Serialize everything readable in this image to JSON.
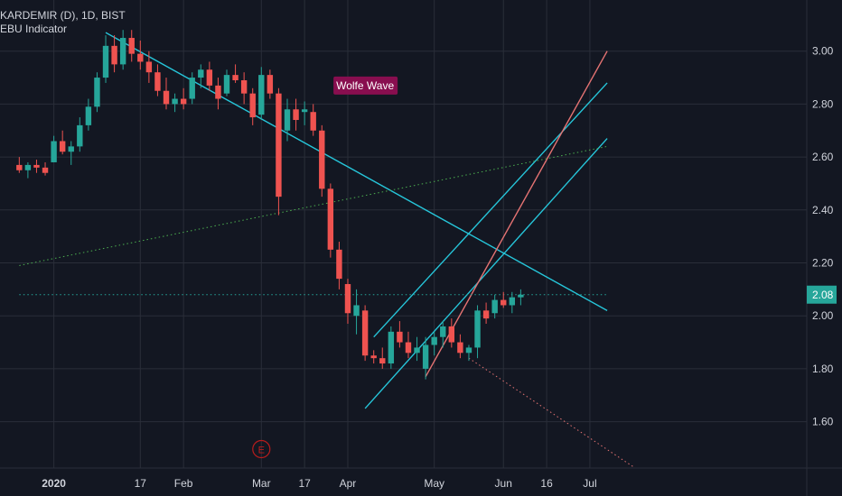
{
  "header": {
    "symbol_line": "KARDEMIR (D), 1D, BIST",
    "indicator_name": "EBU Indicator"
  },
  "colors": {
    "background": "#131722",
    "grid": "#2a2e39",
    "up": "#26a69a",
    "down": "#ef5350",
    "text": "#d1d4dc",
    "trendline": "#26c6da",
    "target_line": "#e57373",
    "dotted_line": "#4caf50",
    "price_badge": "#26a69a",
    "wolfe_label_bg": "#880e4f",
    "marker": "#b71c1c"
  },
  "chart_data": {
    "type": "candlestick",
    "title": "KARDEMIR (D), 1D, BIST",
    "indicator": "EBU Indicator",
    "y_ticks": [
      "3.00",
      "2.80",
      "2.60",
      "2.40",
      "2.20",
      "2.00",
      "1.80",
      "1.60"
    ],
    "y_tick_values": [
      3.0,
      2.8,
      2.6,
      2.4,
      2.2,
      2.0,
      1.8,
      1.6
    ],
    "ylim": [
      1.43,
      3.07
    ],
    "x_ticks": [
      {
        "label": "2020",
        "bold": true,
        "bar": 0
      },
      {
        "label": "17",
        "bold": false,
        "bar": 10
      },
      {
        "label": "Feb",
        "bold": false,
        "bar": 15
      },
      {
        "label": "Mar",
        "bold": false,
        "bar": 24
      },
      {
        "label": "17",
        "bold": false,
        "bar": 29
      },
      {
        "label": "Apr",
        "bold": false,
        "bar": 34
      },
      {
        "label": "May",
        "bold": false,
        "bar": 44
      },
      {
        "label": "Jun",
        "bold": false,
        "bar": 52
      },
      {
        "label": "16",
        "bold": false,
        "bar": 57
      },
      {
        "label": "Jul",
        "bold": false,
        "bar": 62
      }
    ],
    "current_price": {
      "label": "2.08",
      "value": 2.08
    },
    "annotation_label": "Wolfe Wave",
    "annotation_anchor": {
      "bar": 36,
      "value": 2.87
    },
    "marker": {
      "label": "E",
      "bar": 24
    },
    "candles": [
      [
        -4,
        2.57,
        2.6,
        2.54,
        2.55
      ],
      [
        -3,
        2.55,
        2.58,
        2.52,
        2.57
      ],
      [
        -2,
        2.57,
        2.59,
        2.54,
        2.56
      ],
      [
        -1,
        2.56,
        2.58,
        2.53,
        2.54
      ],
      [
        0,
        2.58,
        2.68,
        2.58,
        2.66
      ],
      [
        1,
        2.66,
        2.7,
        2.61,
        2.62
      ],
      [
        2,
        2.62,
        2.66,
        2.57,
        2.64
      ],
      [
        3,
        2.64,
        2.75,
        2.62,
        2.72
      ],
      [
        4,
        2.72,
        2.82,
        2.7,
        2.79
      ],
      [
        5,
        2.79,
        2.92,
        2.77,
        2.9
      ],
      [
        6,
        2.9,
        3.06,
        2.88,
        3.02
      ],
      [
        7,
        3.02,
        3.06,
        2.92,
        2.95
      ],
      [
        8,
        2.95,
        3.08,
        2.93,
        3.05
      ],
      [
        9,
        3.05,
        3.08,
        2.96,
        2.99
      ],
      [
        10,
        2.99,
        3.04,
        2.93,
        2.96
      ],
      [
        11,
        2.96,
        3.0,
        2.88,
        2.92
      ],
      [
        12,
        2.92,
        2.95,
        2.83,
        2.85
      ],
      [
        13,
        2.85,
        2.9,
        2.78,
        2.8
      ],
      [
        14,
        2.8,
        2.84,
        2.77,
        2.82
      ],
      [
        15,
        2.82,
        2.86,
        2.78,
        2.8
      ],
      [
        16,
        2.82,
        2.92,
        2.8,
        2.9
      ],
      [
        17,
        2.9,
        2.95,
        2.86,
        2.93
      ],
      [
        18,
        2.93,
        2.96,
        2.85,
        2.87
      ],
      [
        19,
        2.87,
        2.9,
        2.78,
        2.82
      ],
      [
        20,
        2.84,
        2.93,
        2.83,
        2.91
      ],
      [
        21,
        2.91,
        2.95,
        2.88,
        2.89
      ],
      [
        22,
        2.89,
        2.92,
        2.8,
        2.84
      ],
      [
        23,
        2.84,
        2.86,
        2.72,
        2.75
      ],
      [
        24,
        2.76,
        2.94,
        2.74,
        2.91
      ],
      [
        25,
        2.91,
        2.93,
        2.82,
        2.84
      ],
      [
        26,
        2.84,
        2.86,
        2.38,
        2.45
      ],
      [
        27,
        2.7,
        2.82,
        2.66,
        2.78
      ],
      [
        28,
        2.78,
        2.82,
        2.7,
        2.74
      ],
      [
        29,
        2.77,
        2.81,
        2.72,
        2.78
      ],
      [
        30,
        2.77,
        2.8,
        2.68,
        2.7
      ],
      [
        31,
        2.7,
        2.72,
        2.45,
        2.48
      ],
      [
        32,
        2.48,
        2.5,
        2.22,
        2.25
      ],
      [
        33,
        2.25,
        2.28,
        2.1,
        2.14
      ],
      [
        34,
        2.12,
        2.14,
        1.97,
        2.01
      ],
      [
        35,
        2.0,
        2.1,
        1.93,
        2.04
      ],
      [
        36,
        2.02,
        2.04,
        1.83,
        1.85
      ],
      [
        37,
        1.85,
        1.87,
        1.82,
        1.84
      ],
      [
        38,
        1.84,
        1.88,
        1.8,
        1.82
      ],
      [
        39,
        1.82,
        1.96,
        1.8,
        1.94
      ],
      [
        40,
        1.94,
        1.98,
        1.88,
        1.9
      ],
      [
        41,
        1.9,
        1.94,
        1.84,
        1.86
      ],
      [
        42,
        1.86,
        1.92,
        1.83,
        1.88
      ],
      [
        43,
        1.8,
        1.92,
        1.76,
        1.89
      ],
      [
        44,
        1.89,
        1.94,
        1.85,
        1.92
      ],
      [
        45,
        1.92,
        1.98,
        1.88,
        1.96
      ],
      [
        46,
        1.96,
        1.99,
        1.88,
        1.9
      ],
      [
        47,
        1.9,
        1.93,
        1.84,
        1.86
      ],
      [
        48,
        1.86,
        1.89,
        1.83,
        1.88
      ],
      [
        49,
        1.88,
        2.04,
        1.84,
        2.02
      ],
      [
        50,
        2.02,
        2.05,
        1.97,
        1.99
      ],
      [
        51,
        2.01,
        2.08,
        1.99,
        2.06
      ],
      [
        52,
        2.06,
        2.09,
        2.03,
        2.04
      ],
      [
        53,
        2.04,
        2.09,
        2.01,
        2.07
      ],
      [
        54,
        2.07,
        2.1,
        2.04,
        2.08
      ]
    ],
    "lines": [
      {
        "name": "descending-trendline",
        "style": "solid",
        "color": "#26c6da",
        "from": [
          6,
          3.07
        ],
        "to": [
          64,
          2.02
        ]
      },
      {
        "name": "channel-upper",
        "style": "solid",
        "color": "#26c6da",
        "from": [
          37,
          1.92
        ],
        "to": [
          64,
          2.88
        ]
      },
      {
        "name": "channel-lower",
        "style": "solid",
        "color": "#26c6da",
        "from": [
          36,
          1.65
        ],
        "to": [
          64,
          2.67
        ]
      },
      {
        "name": "wolfe-target-line",
        "style": "solid",
        "color": "#e57373",
        "from": [
          43,
          1.77
        ],
        "to": [
          64,
          3.0
        ]
      },
      {
        "name": "long-dotted-line",
        "style": "dotted",
        "color": "#4caf50",
        "from": [
          -4,
          2.19
        ],
        "to": [
          64,
          2.64
        ]
      },
      {
        "name": "projection-dotted",
        "style": "dotted",
        "color": "#e57373",
        "from": [
          48,
          1.84
        ],
        "to": [
          67,
          1.43
        ]
      },
      {
        "name": "price-line",
        "style": "dotted",
        "color": "#26a69a",
        "from": [
          -4,
          2.08
        ],
        "to": [
          64,
          2.08
        ]
      }
    ]
  }
}
